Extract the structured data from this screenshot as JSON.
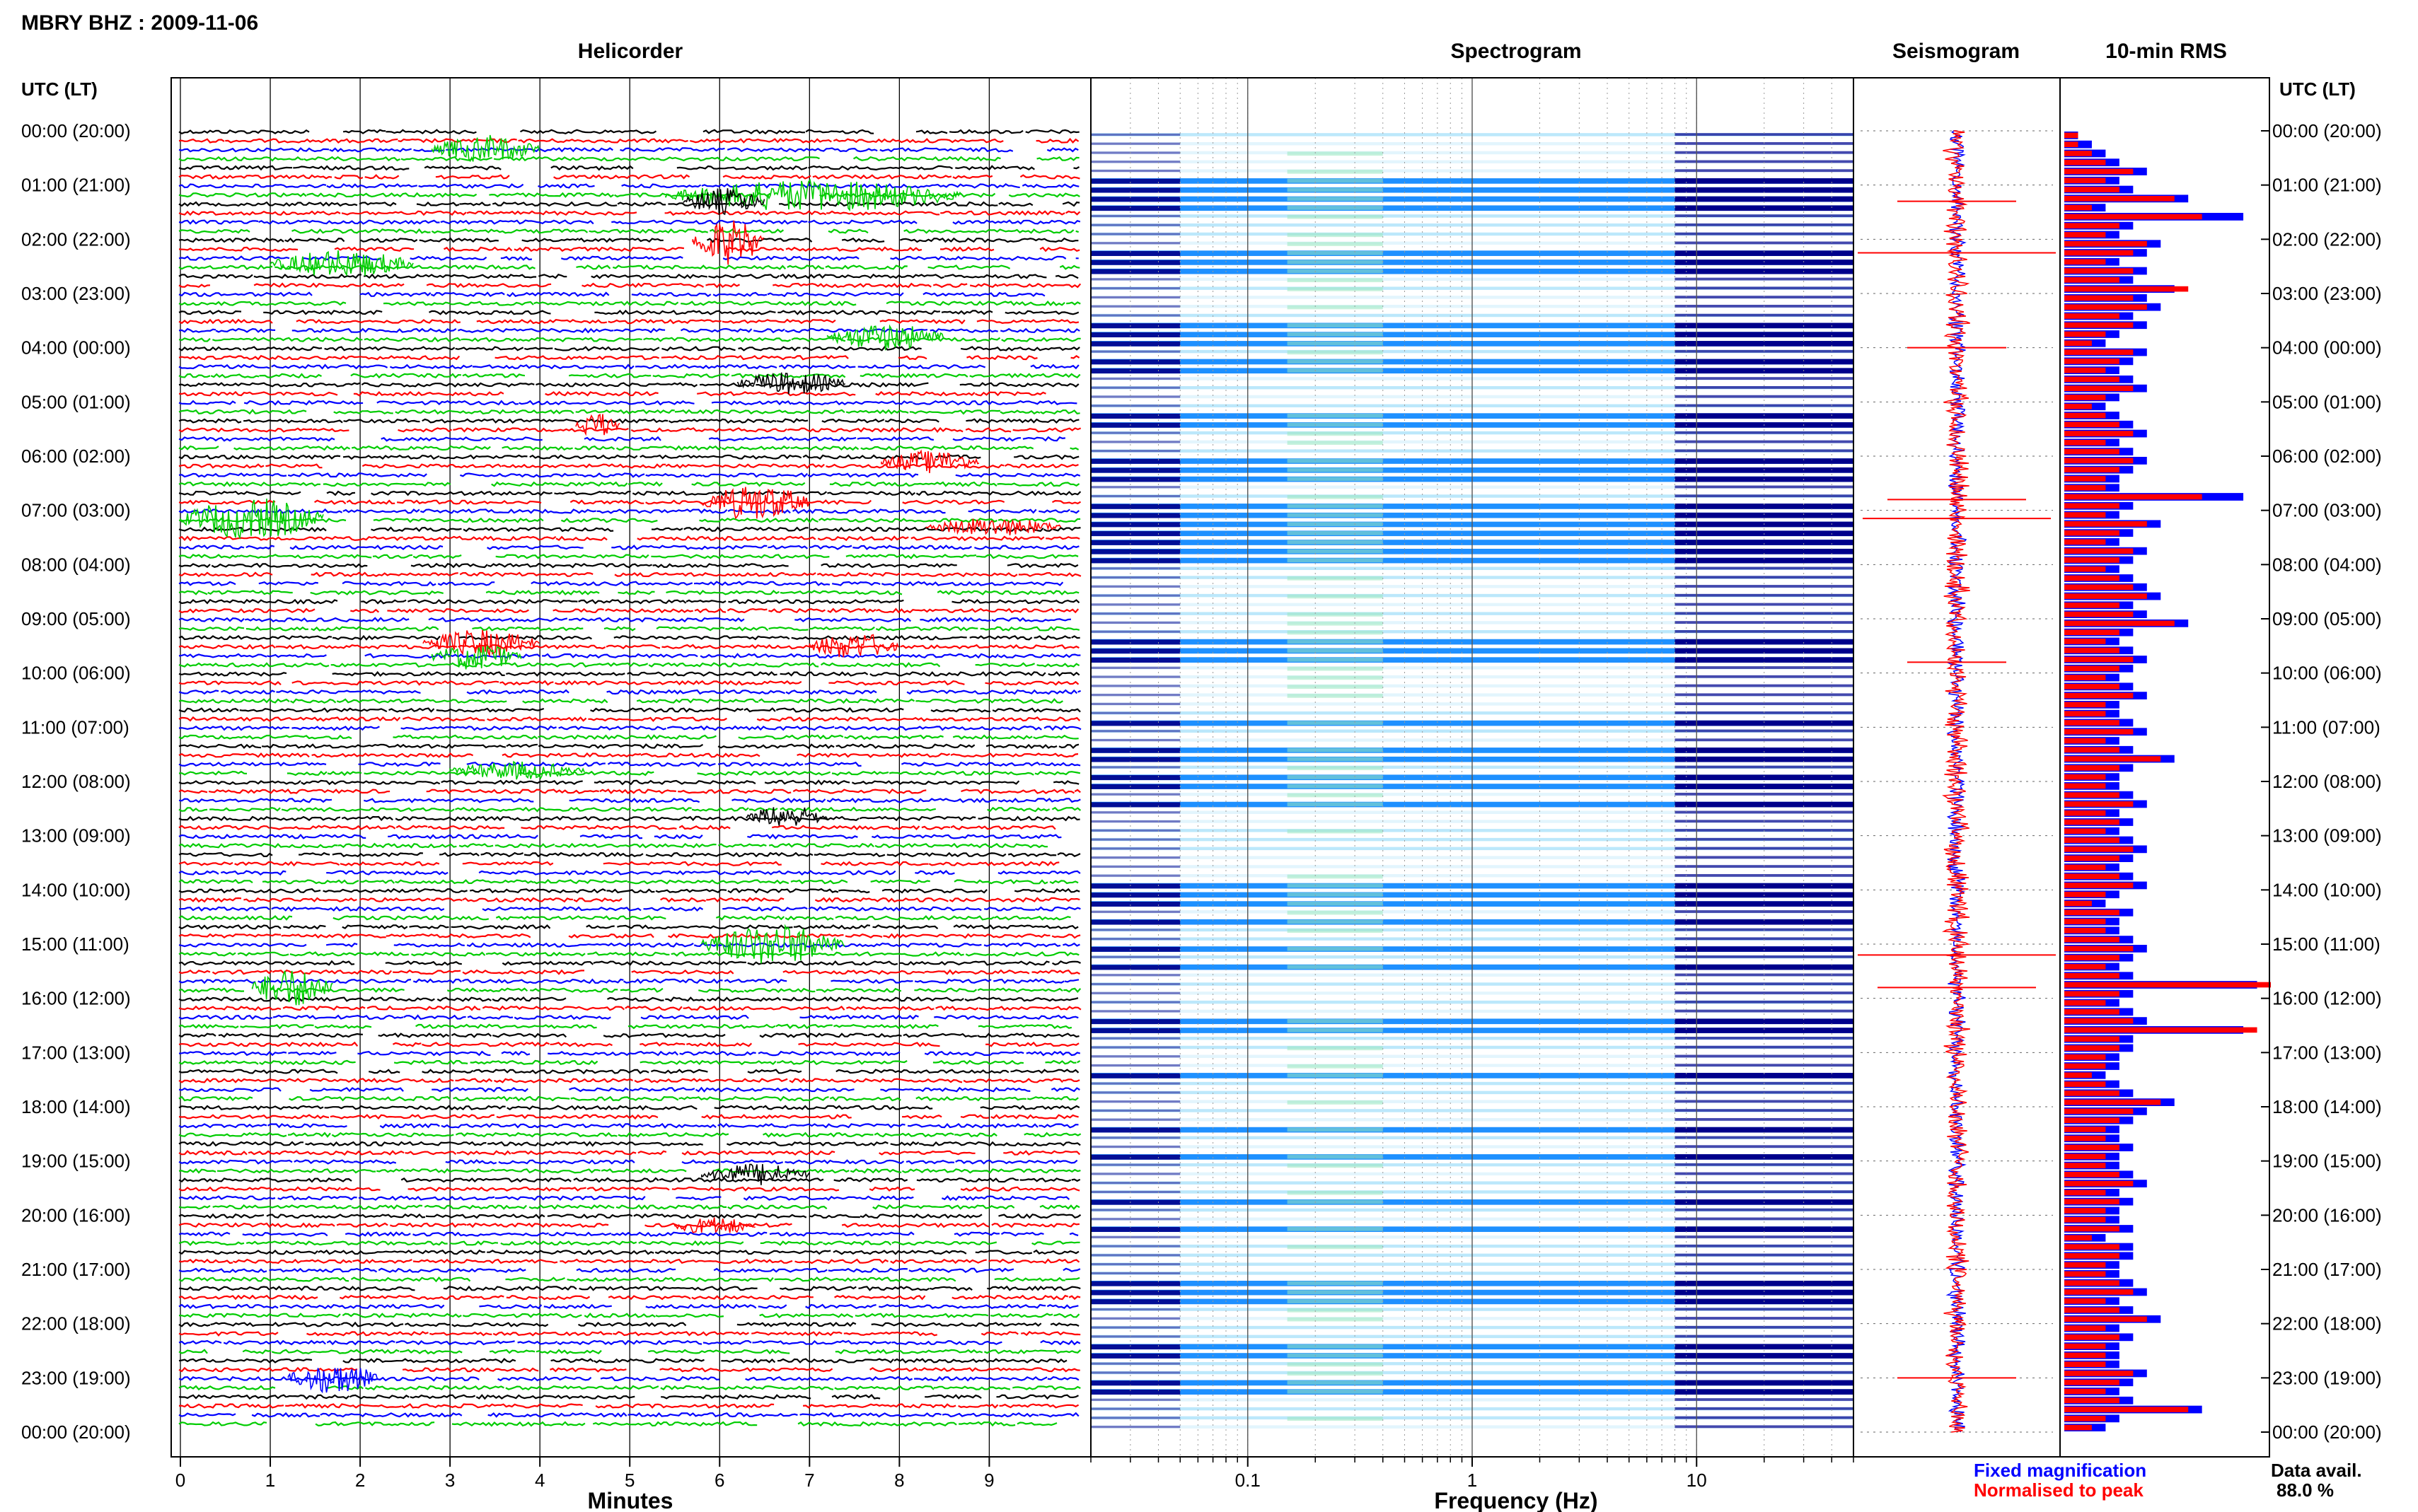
{
  "header": {
    "station_title": "MBRY BHZ : 2009-11-06"
  },
  "time_axis": {
    "label": "UTC (LT)",
    "ticks": [
      "00:00 (20:00)",
      "01:00 (21:00)",
      "02:00 (22:00)",
      "03:00 (23:00)",
      "04:00 (00:00)",
      "05:00 (01:00)",
      "06:00 (02:00)",
      "07:00 (03:00)",
      "08:00 (04:00)",
      "09:00 (05:00)",
      "10:00 (06:00)",
      "11:00 (07:00)",
      "12:00 (08:00)",
      "13:00 (09:00)",
      "14:00 (10:00)",
      "15:00 (11:00)",
      "16:00 (12:00)",
      "17:00 (13:00)",
      "18:00 (14:00)",
      "19:00 (15:00)",
      "20:00 (16:00)",
      "21:00 (17:00)",
      "22:00 (18:00)",
      "23:00 (19:00)",
      "00:00 (20:00)"
    ]
  },
  "legend": {
    "fixed": "Fixed magnification",
    "normalised": "Normalised to peak",
    "fixed_color": "#0000ff",
    "normalised_color": "#ff0000"
  },
  "availability": {
    "label": "Data avail.",
    "value": "88.0 %"
  },
  "colors": {
    "trace": [
      "#000000",
      "#ff0000",
      "#0000ff",
      "#00cc00"
    ],
    "spectro_dark": "#00008b",
    "spectro_mid": "#1e90ff",
    "spectro_light": "#8fd8f8"
  },
  "chart_data": [
    {
      "type": "line",
      "panel": "helicorder",
      "title": "Helicorder",
      "xlabel": "Minutes",
      "xlim": [
        0,
        10
      ],
      "x_ticks": [
        "0",
        "1",
        "2",
        "3",
        "4",
        "5",
        "6",
        "7",
        "8",
        "9"
      ],
      "rows_per_hour": 6,
      "rows": 144,
      "trace_colors": [
        "black",
        "red",
        "blue",
        "green"
      ],
      "events": [
        {
          "hour": 0.33,
          "start_min": 2.8,
          "end_min": 4.0,
          "amp": 0.6,
          "color": "green"
        },
        {
          "hour": 1.2,
          "start_min": 5.4,
          "end_min": 8.7,
          "amp": 0.7,
          "color": "green"
        },
        {
          "hour": 1.3,
          "start_min": 5.6,
          "end_min": 6.5,
          "amp": 0.6,
          "color": "black"
        },
        {
          "hour": 2.05,
          "start_min": 5.7,
          "end_min": 6.5,
          "amp": 1.0,
          "color": "red"
        },
        {
          "hour": 2.45,
          "start_min": 1.0,
          "end_min": 2.6,
          "amp": 0.6,
          "color": "green"
        },
        {
          "hour": 3.8,
          "start_min": 7.2,
          "end_min": 8.5,
          "amp": 0.6,
          "color": "green"
        },
        {
          "hour": 4.65,
          "start_min": 6.2,
          "end_min": 7.4,
          "amp": 0.5,
          "color": "black"
        },
        {
          "hour": 5.45,
          "start_min": 4.4,
          "end_min": 4.9,
          "amp": 0.6,
          "color": "red"
        },
        {
          "hour": 6.1,
          "start_min": 7.8,
          "end_min": 8.9,
          "amp": 0.5,
          "color": "red"
        },
        {
          "hour": 6.85,
          "start_min": 5.8,
          "end_min": 7.0,
          "amp": 0.8,
          "color": "red"
        },
        {
          "hour": 7.15,
          "start_min": 0.0,
          "end_min": 1.6,
          "amp": 0.9,
          "color": "green"
        },
        {
          "hour": 7.3,
          "start_min": 8.3,
          "end_min": 9.8,
          "amp": 0.4,
          "color": "red"
        },
        {
          "hour": 9.45,
          "start_min": 2.7,
          "end_min": 4.0,
          "amp": 0.6,
          "color": "red"
        },
        {
          "hour": 9.5,
          "start_min": 7.0,
          "end_min": 8.0,
          "amp": 0.6,
          "color": "red"
        },
        {
          "hour": 9.7,
          "start_min": 2.8,
          "end_min": 3.8,
          "amp": 0.6,
          "color": "green"
        },
        {
          "hour": 11.8,
          "start_min": 3.0,
          "end_min": 4.5,
          "amp": 0.4,
          "color": "green"
        },
        {
          "hour": 12.65,
          "start_min": 6.3,
          "end_min": 7.2,
          "amp": 0.5,
          "color": "black"
        },
        {
          "hour": 15.0,
          "start_min": 5.8,
          "end_min": 7.4,
          "amp": 0.9,
          "color": "green"
        },
        {
          "hour": 15.8,
          "start_min": 0.8,
          "end_min": 1.7,
          "amp": 0.9,
          "color": "green"
        },
        {
          "hour": 19.25,
          "start_min": 5.8,
          "end_min": 7.0,
          "amp": 0.5,
          "color": "black"
        },
        {
          "hour": 20.2,
          "start_min": 5.5,
          "end_min": 6.4,
          "amp": 0.4,
          "color": "red"
        },
        {
          "hour": 23.0,
          "start_min": 1.2,
          "end_min": 2.2,
          "amp": 0.7,
          "color": "blue"
        }
      ]
    },
    {
      "type": "heatmap",
      "panel": "spectrogram",
      "title": "Spectrogram",
      "xlabel": "Frequency (Hz)",
      "xscale": "log",
      "xlim": [
        0.02,
        50
      ],
      "x_ticks": [
        {
          "value": 0.1,
          "label": "0.1"
        },
        {
          "value": 1,
          "label": "1"
        },
        {
          "value": 10,
          "label": "10"
        }
      ],
      "dark_hours": [
        0.9,
        1.0,
        1.15,
        1.3,
        2.3,
        2.45,
        3.5,
        3.8,
        4.2,
        5.3,
        6.0,
        6.2,
        6.9,
        7.1,
        7.3,
        7.45,
        7.6,
        7.7,
        9.3,
        9.5,
        9.7,
        10.8,
        11.4,
        11.9,
        12.3,
        13.8,
        14.0,
        14.2,
        14.5,
        15.0,
        15.3,
        16.3,
        16.5,
        17.3,
        18.3,
        18.8,
        19.7,
        20.2,
        21.2,
        21.4,
        22.3,
        22.5,
        23.1
      ]
    },
    {
      "type": "line",
      "panel": "seismogram",
      "title": "Seismogram",
      "spikes": [
        {
          "hour": 1.3,
          "amp": 0.6
        },
        {
          "hour": 2.25,
          "amp": 1.0
        },
        {
          "hour": 4.0,
          "amp": 0.5
        },
        {
          "hour": 6.8,
          "amp": 0.7
        },
        {
          "hour": 7.15,
          "amp": 0.95
        },
        {
          "hour": 9.8,
          "amp": 0.5
        },
        {
          "hour": 15.2,
          "amp": 1.0
        },
        {
          "hour": 15.8,
          "amp": 0.8
        },
        {
          "hour": 23.0,
          "amp": 0.6
        }
      ]
    },
    {
      "type": "bar",
      "panel": "rms",
      "title": "10-min RMS",
      "series": [
        {
          "name": "Fixed magnification",
          "values": [
            0.1,
            0.2,
            0.3,
            0.4,
            0.6,
            0.4,
            0.5,
            0.9,
            0.3,
            1.3,
            0.5,
            0.4,
            0.7,
            0.6,
            0.4,
            0.6,
            0.5,
            0.8,
            0.6,
            0.7,
            0.5,
            0.6,
            0.4,
            0.3,
            0.6,
            0.5,
            0.4,
            0.5,
            0.6,
            0.4,
            0.3,
            0.4,
            0.5,
            0.6,
            0.4,
            0.5,
            0.6,
            0.5,
            0.4,
            0.4,
            1.3,
            0.5,
            0.4,
            0.7,
            0.5,
            0.4,
            0.6,
            0.5,
            0.4,
            0.5,
            0.6,
            0.7,
            0.5,
            0.6,
            0.9,
            0.5,
            0.4,
            0.5,
            0.6,
            0.5,
            0.4,
            0.5,
            0.6,
            0.4,
            0.4,
            0.5,
            0.6,
            0.4,
            0.5,
            0.8,
            0.5,
            0.4,
            0.4,
            0.5,
            0.6,
            0.4,
            0.5,
            0.4,
            0.5,
            0.6,
            0.5,
            0.4,
            0.5,
            0.6,
            0.4,
            0.3,
            0.5,
            0.4,
            0.4,
            0.5,
            0.6,
            0.5,
            0.4,
            0.5,
            1.4,
            0.5,
            0.4,
            0.5,
            0.6,
            1.3,
            0.5,
            0.5,
            0.4,
            0.4,
            0.3,
            0.4,
            0.5,
            0.8,
            0.6,
            0.5,
            0.4,
            0.4,
            0.5,
            0.4,
            0.4,
            0.5,
            0.6,
            0.4,
            0.5,
            0.4,
            0.4,
            0.5,
            0.3,
            0.5,
            0.5,
            0.4,
            0.4,
            0.5,
            0.6,
            0.4,
            0.5,
            0.7,
            0.4,
            0.5,
            0.4,
            0.4,
            0.4,
            0.6,
            0.5,
            0.4,
            0.5,
            1.0,
            0.4,
            0.3
          ]
        },
        {
          "name": "Normalised to peak",
          "values": [
            0.1,
            0.1,
            0.2,
            0.3,
            0.5,
            0.3,
            0.4,
            0.8,
            0.2,
            1.0,
            0.4,
            0.3,
            0.6,
            0.5,
            0.3,
            0.5,
            0.4,
            0.9,
            0.5,
            0.6,
            0.4,
            0.5,
            0.3,
            0.2,
            0.5,
            0.4,
            0.3,
            0.4,
            0.5,
            0.3,
            0.2,
            0.3,
            0.4,
            0.5,
            0.3,
            0.4,
            0.5,
            0.4,
            0.3,
            0.3,
            1.0,
            0.4,
            0.3,
            0.6,
            0.4,
            0.3,
            0.5,
            0.4,
            0.3,
            0.4,
            0.5,
            0.6,
            0.4,
            0.5,
            0.8,
            0.4,
            0.3,
            0.4,
            0.5,
            0.4,
            0.3,
            0.4,
            0.5,
            0.3,
            0.3,
            0.4,
            0.5,
            0.3,
            0.4,
            0.7,
            0.4,
            0.3,
            0.3,
            0.4,
            0.5,
            0.3,
            0.4,
            0.3,
            0.4,
            0.5,
            0.4,
            0.3,
            0.4,
            0.5,
            0.3,
            0.2,
            0.4,
            0.3,
            0.3,
            0.4,
            0.5,
            0.4,
            0.3,
            0.4,
            1.5,
            0.4,
            0.3,
            0.4,
            0.5,
            1.4,
            0.4,
            0.4,
            0.3,
            0.3,
            0.2,
            0.3,
            0.4,
            0.7,
            0.5,
            0.4,
            0.3,
            0.3,
            0.4,
            0.3,
            0.3,
            0.4,
            0.5,
            0.3,
            0.4,
            0.3,
            0.3,
            0.4,
            0.2,
            0.4,
            0.4,
            0.3,
            0.3,
            0.4,
            0.5,
            0.3,
            0.4,
            0.6,
            0.3,
            0.4,
            0.3,
            0.3,
            0.3,
            0.5,
            0.4,
            0.3,
            0.4,
            0.9,
            0.3,
            0.2
          ]
        }
      ]
    }
  ]
}
